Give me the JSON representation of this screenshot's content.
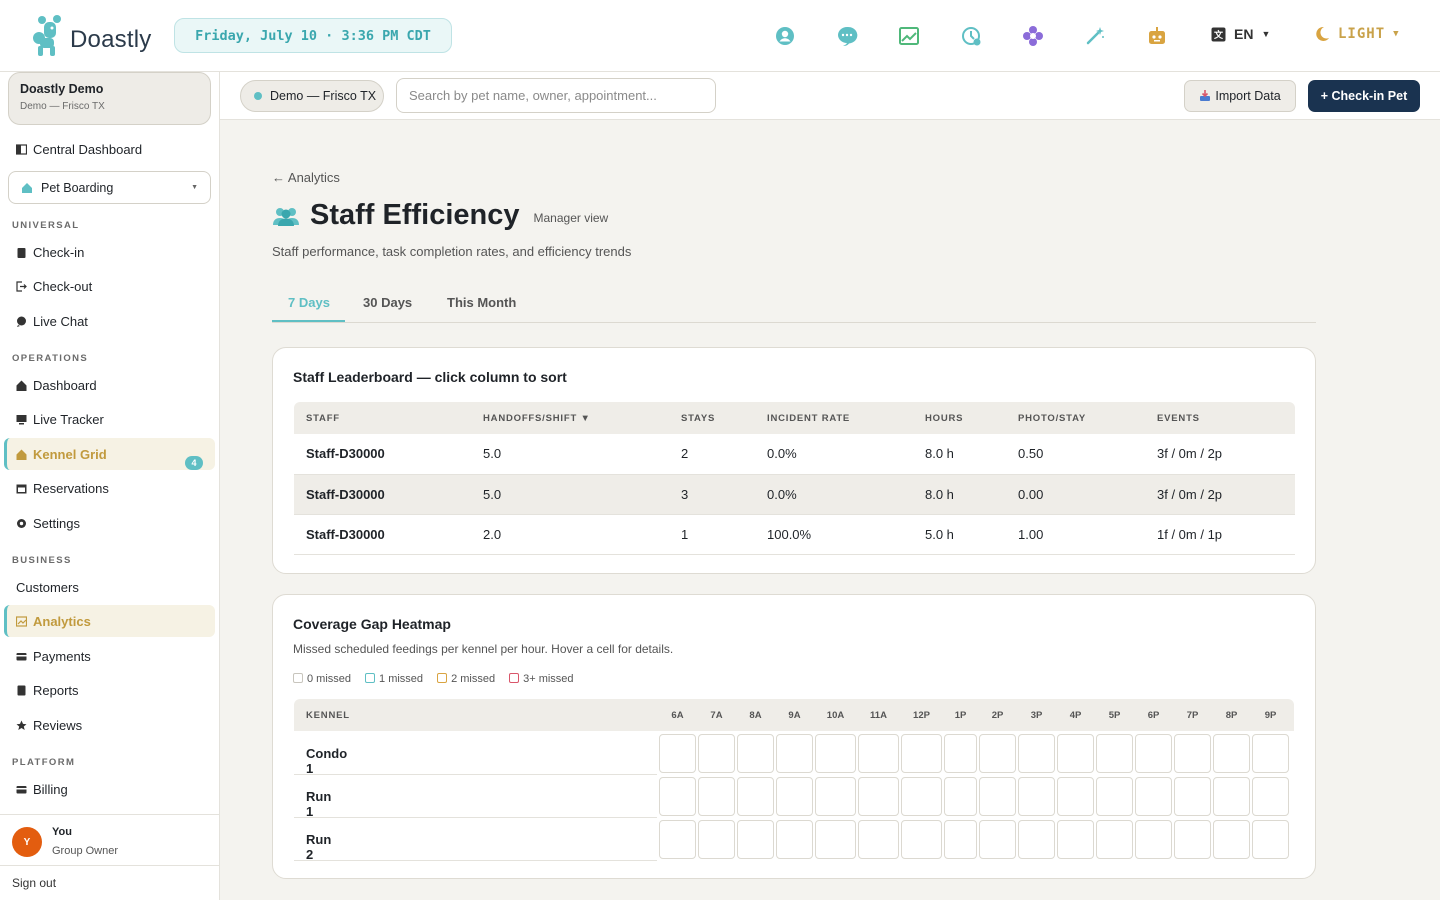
{
  "app": {
    "name": "Doastly",
    "datetime": "Friday, July 10 · 3:36 PM CDT",
    "language": "EN",
    "theme": "LIGHT"
  },
  "top_icons": [
    "support-icon",
    "chat-bubble-icon",
    "chart-icon",
    "clock-history-icon",
    "flower-icon",
    "magic-wand-icon",
    "robot-icon"
  ],
  "sidebar": {
    "tenant": {
      "name": "Doastly Demo",
      "location": "Demo — Frisco TX"
    },
    "central_dashboard": "Central Dashboard",
    "module": "Pet Boarding",
    "sections": {
      "universal": "UNIVERSAL",
      "operations": "OPERATIONS",
      "business": "BUSINESS",
      "platform": "PLATFORM"
    },
    "universal": [
      "Check-in",
      "Check-out",
      "Live Chat"
    ],
    "operations": [
      "Dashboard",
      "Live Tracker",
      "Kennel Grid",
      "Reservations",
      "Settings"
    ],
    "kennel_grid_badge": "4",
    "business": [
      "Customers",
      "Analytics",
      "Payments",
      "Reports",
      "Reviews"
    ],
    "platform": [
      "Billing"
    ],
    "user": {
      "initial": "Y",
      "name": "You",
      "role": "Group Owner"
    },
    "sign_out": "Sign out"
  },
  "subbar": {
    "location": "Demo — Frisco TX",
    "search_placeholder": "Search by pet name, owner, appointment...",
    "import_label": "Import Data",
    "checkin_label": "+ Check-in Pet"
  },
  "page": {
    "back": "← Analytics",
    "title": "Staff Efficiency",
    "tag": "Manager view",
    "description": "Staff performance, task completion rates, and efficiency trends",
    "tabs": [
      "7 Days",
      "30 Days",
      "This Month"
    ],
    "active_tab": "7 Days"
  },
  "leaderboard": {
    "title": "Staff Leaderboard — click column to sort",
    "columns": [
      "STAFF",
      "HANDOFFS/SHIFT ▼",
      "STAYS",
      "INCIDENT RATE",
      "HOURS",
      "PHOTO/STAY",
      "EVENTS"
    ],
    "rows": [
      [
        "Staff-D30000",
        "5.0",
        "2",
        "0.0%",
        "8.0 h",
        "0.50",
        "3f / 0m / 2p"
      ],
      [
        "Staff-D30000",
        "5.0",
        "3",
        "0.0%",
        "8.0 h",
        "0.00",
        "3f / 0m / 2p"
      ],
      [
        "Staff-D30000",
        "2.0",
        "1",
        "100.0%",
        "5.0 h",
        "1.00",
        "1f / 0m / 1p"
      ]
    ]
  },
  "heatmap": {
    "title": "Coverage Gap Heatmap",
    "subtitle": "Missed scheduled feedings per kennel per hour. Hover a cell for details.",
    "legend": [
      {
        "label": "0 missed",
        "color": "#c8c5bd"
      },
      {
        "label": "1 missed",
        "color": "#5fbfc4"
      },
      {
        "label": "2 missed",
        "color": "#d9a441"
      },
      {
        "label": "3+ missed",
        "color": "#d9566a"
      }
    ],
    "row_header": "KENNEL",
    "hours": [
      "6A",
      "7A",
      "8A",
      "9A",
      "10A",
      "11A",
      "12P",
      "1P",
      "2P",
      "3P",
      "4P",
      "5P",
      "6P",
      "7P",
      "8P",
      "9P"
    ],
    "kennels": [
      "Condo 1",
      "Run 1",
      "Run 2"
    ],
    "values": [
      [
        0,
        0,
        0,
        0,
        0,
        0,
        0,
        0,
        0,
        0,
        0,
        0,
        0,
        0,
        0,
        0
      ],
      [
        0,
        0,
        0,
        0,
        0,
        0,
        0,
        0,
        0,
        0,
        0,
        0,
        0,
        0,
        0,
        0
      ],
      [
        0,
        0,
        0,
        0,
        0,
        0,
        0,
        0,
        0,
        0,
        0,
        0,
        0,
        0,
        0,
        0
      ]
    ]
  },
  "colors": {
    "accent": "#5fbfc4",
    "gold": "#c19a3d",
    "primary_button": "#1a3350"
  }
}
